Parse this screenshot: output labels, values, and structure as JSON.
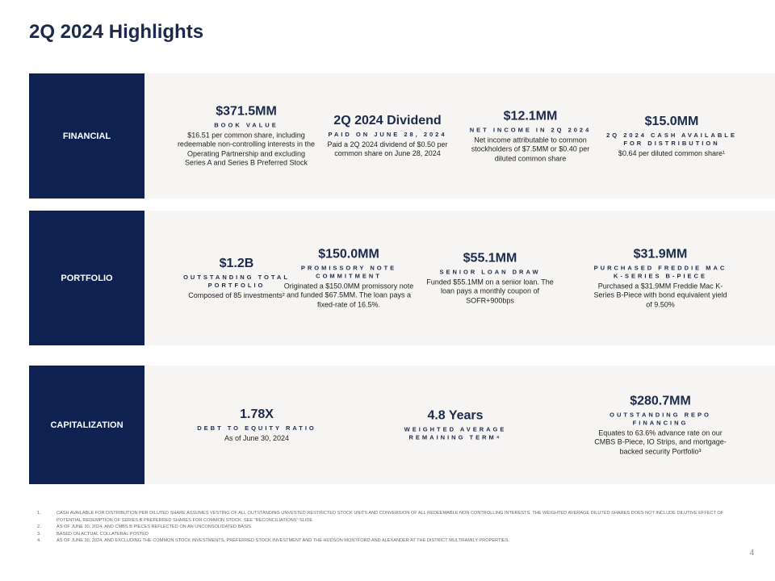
{
  "header": {
    "title": "2Q 2024 Highlights"
  },
  "sections": [
    {
      "label": "FINANCIAL",
      "items": [
        {
          "value": "$371.5MM",
          "caption": "BOOK VALUE",
          "text": "$16.51 per common share, including redeemable non-controlling interests in the Operating Partnership and excluding Series A and Series B Preferred Stock"
        },
        {
          "value": "2Q 2024 Dividend",
          "caption": "PAID ON JUNE 28, 2024",
          "text": "Paid a 2Q 2024 dividend of $0.50 per common share on June 28, 2024"
        },
        {
          "value": "$12.1MM",
          "caption": "NET INCOME IN 2Q 2024",
          "text": "Net income attributable to common stockholders of $7.5MM or $0.40 per diluted common share"
        },
        {
          "value": "$15.0MM",
          "caption": "2Q 2024 CASH AVAILABLE FOR DISTRIBUTION",
          "text": "$0.64 per diluted common share¹"
        }
      ]
    },
    {
      "label": "PORTFOLIO",
      "items": [
        {
          "value": "$1.2B",
          "caption": "OUTSTANDING TOTAL PORTFOLIO",
          "text": "Composed of 85 investments²"
        },
        {
          "value": "$150.0MM",
          "caption": "PROMISSORY NOTE COMMITMENT",
          "text": "Originated a $150.0MM promissory note and funded $67.5MM. The loan pays a fixed-rate of 16.5%."
        },
        {
          "value": "$55.1MM",
          "caption": "SENIOR LOAN DRAW",
          "text": "Funded $55.1MM on a senior loan. The loan pays a monthly coupon of SOFR+900bps"
        },
        {
          "value": "$31.9MM",
          "caption": "PURCHASED FREDDIE MAC K-SERIES B-PIECE",
          "text": "Purchased a $31.9MM Freddie Mac K-Series B-Piece with bond equivalent yield of 9.50%"
        }
      ]
    },
    {
      "label": "CAPITALIZATION",
      "items": [
        {
          "value": "1.78X",
          "caption": "DEBT TO EQUITY RATIO",
          "text": "As of June 30, 2024"
        },
        {
          "value": "4.8 Years",
          "caption": "WEIGHTED AVERAGE REMAINING TERM⁴"
        },
        {
          "value": "$280.7MM",
          "caption": "OUTSTANDING REPO FINANCING",
          "text": "Equates to 63.6% advance rate on our CMBS B-Piece, IO Strips, and mortgage-backed security Portfolio³"
        }
      ]
    }
  ],
  "footnotes": [
    {
      "marker": "1.",
      "text": "CASH AVAILABLE FOR DISTRIBUTION PER DILUTED SHARE ASSUMES VESTING OF ALL OUTSTANDING UNVESTED RESTRICTED STOCK UNITS AND CONVERSION OF ALL REDEEMABLE NON CONTROLLING INTERESTS. THE WEIGHTED AVERAGE DILUTED SHARES DOES NOT INCLUDE DILUTIVE EFFECT OF POTENTIAL REDEMPTION OF SERIES B PREFERRED SHARES FOR COMMON STOCK. SEE \"RECONCILIATIONS\" SLIDE"
    },
    {
      "marker": "2.",
      "text": "AS OF JUNE 30, 2024, AND CMBS B PIECES REFLECTED ON AN UNCONSOLIDATED BASIS"
    },
    {
      "marker": "3.",
      "text": "BASED ON ACTUAL COLLATERAL POSTED"
    },
    {
      "marker": "4.",
      "text": "AS OF JUNE 30, 2024, AND EXCLUDING THE COMMON STOCK INVESTMENTS, PREFERRED STOCK INVESTMENT AND THE HUDSON MONTFORD AND ALEXANDER AT THE DISTRICT MULTIFAMILY PROPERTIES."
    }
  ],
  "page_number": "4"
}
